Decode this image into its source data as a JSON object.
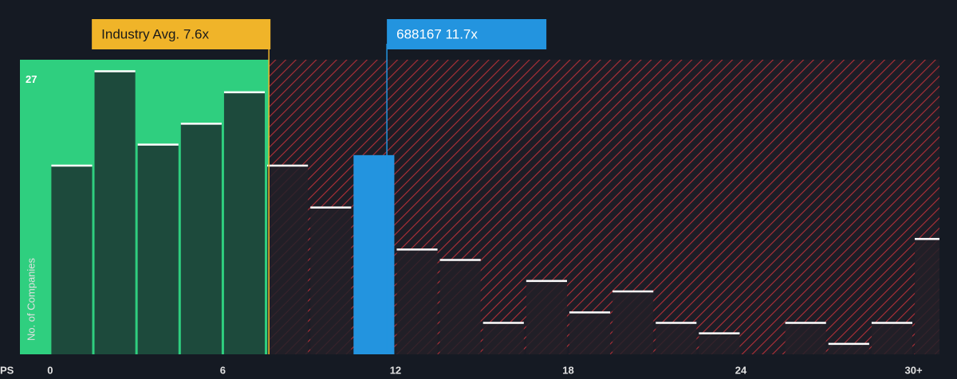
{
  "chart_data": {
    "type": "histogram",
    "x_label": "PS",
    "y_label": "No. of Companies",
    "bins": [
      0,
      1.5,
      3,
      4.5,
      6,
      7.5,
      9,
      10.5,
      12,
      13.5,
      15,
      16.5,
      18,
      19.5,
      21,
      22.5,
      24,
      25.5,
      27,
      28.5,
      30,
      31.5
    ],
    "values": [
      18,
      27,
      20,
      22,
      25,
      18,
      14,
      19,
      10,
      9,
      3,
      7,
      4,
      6,
      3,
      2,
      0,
      3,
      1,
      3,
      11
    ],
    "xlim": [
      -1.05,
      30.9
    ],
    "ylim": [
      0,
      28.1
    ],
    "xticks": [
      0,
      6,
      12,
      18,
      24,
      {
        "value": 30,
        "label": "30+"
      }
    ],
    "yticks": [
      27
    ],
    "annotations": [
      {
        "label": "Industry Avg. 7.6x",
        "value": 7.6,
        "color": "#f0b429"
      },
      {
        "label": "688167 11.7x",
        "value": 11.7,
        "color": "#2394df"
      }
    ],
    "below_color": "#2fcf7f",
    "above_color": "#d9373f"
  }
}
